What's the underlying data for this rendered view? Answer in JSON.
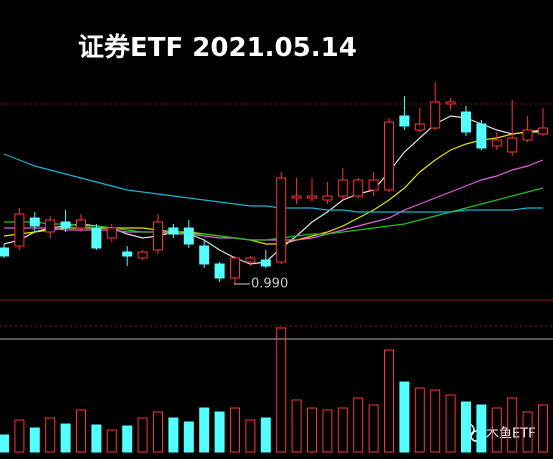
{
  "chart_data": {
    "type": "candlestick",
    "title": "证券ETF 2021.05.14",
    "watermark": "木鱼ETF",
    "low_marker": {
      "value": 0.99,
      "label": "0.990"
    },
    "up_color": "#ff3232",
    "down_color": "#54ffff",
    "ylim": [
      0.982,
      1.102
    ],
    "open": [
      1.008,
      1.009,
      1.023,
      1.016,
      1.021,
      1.018,
      1.018,
      1.013,
      1.006,
      1.003,
      1.007,
      1.018,
      1.018,
      1.009,
      1.0,
      0.993,
      1.001,
      1.002,
      1.001,
      1.033,
      1.033,
      1.032,
      1.034,
      1.034,
      1.037,
      1.037,
      1.074,
      1.067,
      1.068,
      1.08,
      1.076,
      1.07,
      1.059,
      1.056,
      1.062,
      1.065
    ],
    "high": [
      1.01,
      1.028,
      1.026,
      1.024,
      1.027,
      1.025,
      1.02,
      1.02,
      1.009,
      1.007,
      1.025,
      1.02,
      1.022,
      1.012,
      1.001,
      1.004,
      1.004,
      1.007,
      1.046,
      1.043,
      1.043,
      1.041,
      1.048,
      1.043,
      1.046,
      1.073,
      1.084,
      1.078,
      1.091,
      1.083,
      1.079,
      1.072,
      1.066,
      1.082,
      1.074,
      1.078
    ],
    "low": [
      1.003,
      1.007,
      1.016,
      1.013,
      1.016,
      1.016,
      1.007,
      1.011,
      0.999,
      1.002,
      1.005,
      1.013,
      1.008,
      0.998,
      0.991,
      0.99,
      0.999,
      0.998,
      1.0,
      1.03,
      1.031,
      1.03,
      1.032,
      1.033,
      1.034,
      1.036,
      1.067,
      1.066,
      1.067,
      1.077,
      1.064,
      1.057,
      1.057,
      1.054,
      1.061,
      1.064
    ],
    "close": [
      1.004,
      1.025,
      1.019,
      1.022,
      1.018,
      1.022,
      1.008,
      1.018,
      1.004,
      1.006,
      1.021,
      1.015,
      1.01,
      1.0,
      0.993,
      1.003,
      1.003,
      0.999,
      1.043,
      1.034,
      1.034,
      1.034,
      1.042,
      1.042,
      1.042,
      1.071,
      1.069,
      1.07,
      1.081,
      1.081,
      1.066,
      1.058,
      1.062,
      1.063,
      1.067,
      1.068
    ],
    "moving_averages": [
      {
        "color": "#e0e0e0",
        "values": [
          1.01,
          1.012,
          1.016,
          1.018,
          1.019,
          1.02,
          1.019,
          1.018,
          1.015,
          1.013,
          1.014,
          1.016,
          1.015,
          1.012,
          1.007,
          1.003,
          1.0,
          1.001,
          1.008,
          1.014,
          1.021,
          1.026,
          1.032,
          1.035,
          1.037,
          1.046,
          1.056,
          1.063,
          1.07,
          1.074,
          1.073,
          1.07,
          1.067,
          1.065,
          1.066,
          1.067
        ]
      },
      {
        "color": "#e8e000",
        "values": [
          1.014,
          1.015,
          1.016,
          1.017,
          1.018,
          1.018,
          1.018,
          1.018,
          1.018,
          1.018,
          1.017,
          1.016,
          1.016,
          1.015,
          1.014,
          1.013,
          1.012,
          1.01,
          1.01,
          1.012,
          1.014,
          1.016,
          1.019,
          1.023,
          1.027,
          1.032,
          1.038,
          1.046,
          1.052,
          1.057,
          1.06,
          1.062,
          1.063,
          1.065,
          1.066,
          1.066
        ]
      },
      {
        "color": "#e060e0",
        "values": [
          1.018,
          1.018,
          1.018,
          1.018,
          1.017,
          1.017,
          1.017,
          1.017,
          1.016,
          1.016,
          1.016,
          1.015,
          1.015,
          1.014,
          1.013,
          1.013,
          1.012,
          1.012,
          1.012,
          1.012,
          1.013,
          1.015,
          1.017,
          1.019,
          1.021,
          1.023,
          1.027,
          1.03,
          1.033,
          1.036,
          1.039,
          1.042,
          1.044,
          1.047,
          1.049,
          1.052
        ]
      },
      {
        "color": "#20c020",
        "values": [
          1.021,
          1.021,
          1.021,
          1.02,
          1.02,
          1.019,
          1.019,
          1.018,
          1.017,
          1.016,
          1.016,
          1.016,
          1.015,
          1.015,
          1.014,
          1.013,
          1.012,
          1.012,
          1.013,
          1.014,
          1.015,
          1.015,
          1.016,
          1.017,
          1.018,
          1.019,
          1.02,
          1.022,
          1.024,
          1.026,
          1.028,
          1.03,
          1.032,
          1.034,
          1.036,
          1.038
        ]
      },
      {
        "color": "#20b0d0",
        "values": [
          1.055,
          1.052,
          1.049,
          1.047,
          1.045,
          1.043,
          1.041,
          1.039,
          1.037,
          1.036,
          1.035,
          1.034,
          1.033,
          1.032,
          1.031,
          1.03,
          1.029,
          1.029,
          1.028,
          1.028,
          1.028,
          1.027,
          1.027,
          1.026,
          1.026,
          1.026,
          1.026,
          1.026,
          1.026,
          1.026,
          1.027,
          1.027,
          1.027,
          1.027,
          1.028,
          1.028
        ]
      }
    ],
    "volume": [
      17,
      32,
      24,
      34,
      28,
      42,
      27,
      22,
      26,
      34,
      40,
      34,
      30,
      44,
      40,
      44,
      32,
      34,
      124,
      52,
      44,
      42,
      44,
      54,
      47,
      102,
      70,
      64,
      62,
      57,
      50,
      47,
      44,
      54,
      40,
      47
    ],
    "volume_ylim": [
      0,
      130
    ]
  }
}
